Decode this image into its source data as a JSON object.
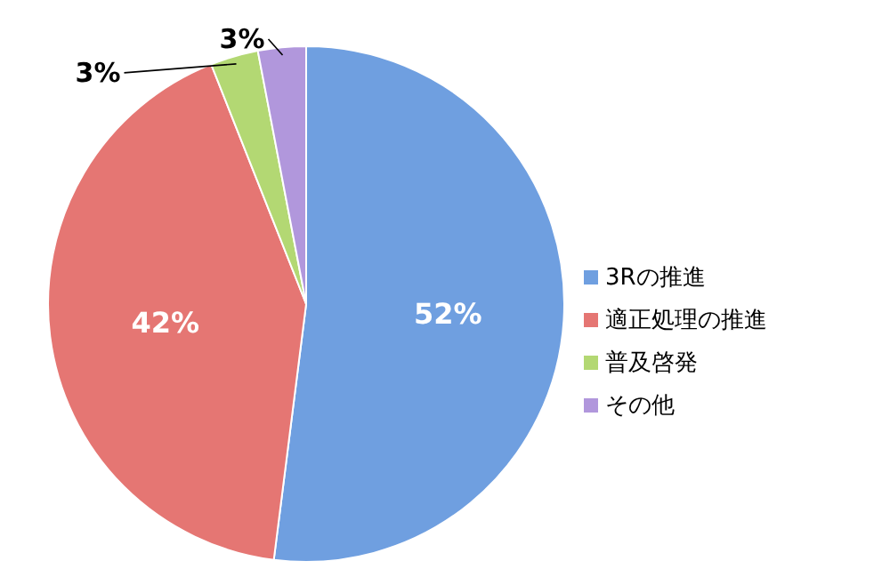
{
  "chart_data": {
    "type": "pie",
    "categories": [
      "3Rの推進",
      "適正処理の推進",
      "普及啓発",
      "その他"
    ],
    "values": [
      52,
      42,
      3,
      3
    ],
    "colors": [
      "#6f9fe0",
      "#e57673",
      "#b3d873",
      "#b197dc"
    ],
    "value_labels": [
      "52%",
      "42%",
      "3%",
      "3%"
    ],
    "legend": "right"
  }
}
